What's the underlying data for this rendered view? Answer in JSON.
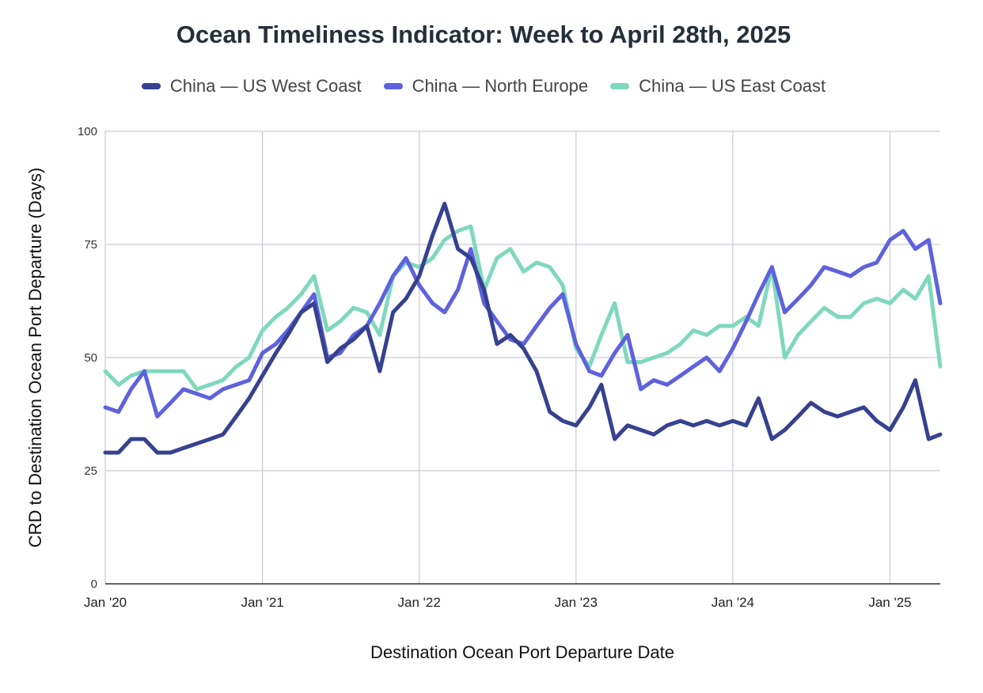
{
  "chart_data": {
    "type": "line",
    "title": "Ocean Timeliness Indicator: Week to April 28th, 2025",
    "xlabel": "Destination Ocean Port Departure Date",
    "ylabel": "CRD to Destination Ocean Port Departure (Days)",
    "ylim": [
      0,
      100
    ],
    "yticks": [
      0,
      25,
      50,
      75,
      100
    ],
    "xlim": [
      "2020-01-01",
      "2025-04-28"
    ],
    "xticks": [
      {
        "date": "2020-01-01",
        "label": "Jan '20"
      },
      {
        "date": "2021-01-01",
        "label": "Jan '21"
      },
      {
        "date": "2022-01-01",
        "label": "Jan '22"
      },
      {
        "date": "2023-01-01",
        "label": "Jan '23"
      },
      {
        "date": "2024-01-01",
        "label": "Jan '24"
      },
      {
        "date": "2025-01-01",
        "label": "Jan '25"
      }
    ],
    "grid": true,
    "legend_position": "top",
    "series": [
      {
        "name": "China — US West Coast",
        "color": "#36418f",
        "points": [
          [
            "2020-01-01",
            29
          ],
          [
            "2020-02-01",
            29
          ],
          [
            "2020-03-01",
            32
          ],
          [
            "2020-04-01",
            32
          ],
          [
            "2020-05-01",
            29
          ],
          [
            "2020-06-01",
            29
          ],
          [
            "2020-07-01",
            30
          ],
          [
            "2020-08-01",
            31
          ],
          [
            "2020-09-01",
            32
          ],
          [
            "2020-10-01",
            33
          ],
          [
            "2020-11-01",
            37
          ],
          [
            "2020-12-01",
            41
          ],
          [
            "2021-01-01",
            46
          ],
          [
            "2021-02-01",
            51
          ],
          [
            "2021-03-01",
            55
          ],
          [
            "2021-04-01",
            60
          ],
          [
            "2021-05-01",
            62
          ],
          [
            "2021-06-01",
            49
          ],
          [
            "2021-07-01",
            52
          ],
          [
            "2021-08-01",
            54
          ],
          [
            "2021-09-01",
            57
          ],
          [
            "2021-10-01",
            47
          ],
          [
            "2021-11-01",
            60
          ],
          [
            "2021-12-01",
            63
          ],
          [
            "2022-01-01",
            68
          ],
          [
            "2022-02-01",
            77
          ],
          [
            "2022-03-01",
            84
          ],
          [
            "2022-04-01",
            74
          ],
          [
            "2022-05-01",
            72
          ],
          [
            "2022-06-01",
            65
          ],
          [
            "2022-07-01",
            53
          ],
          [
            "2022-08-01",
            55
          ],
          [
            "2022-09-01",
            52
          ],
          [
            "2022-10-01",
            47
          ],
          [
            "2022-11-01",
            38
          ],
          [
            "2022-12-01",
            36
          ],
          [
            "2023-01-01",
            35
          ],
          [
            "2023-02-01",
            39
          ],
          [
            "2023-03-01",
            44
          ],
          [
            "2023-04-01",
            32
          ],
          [
            "2023-05-01",
            35
          ],
          [
            "2023-06-01",
            34
          ],
          [
            "2023-07-01",
            33
          ],
          [
            "2023-08-01",
            35
          ],
          [
            "2023-09-01",
            36
          ],
          [
            "2023-10-01",
            35
          ],
          [
            "2023-11-01",
            36
          ],
          [
            "2023-12-01",
            35
          ],
          [
            "2024-01-01",
            36
          ],
          [
            "2024-02-01",
            35
          ],
          [
            "2024-03-01",
            41
          ],
          [
            "2024-04-01",
            32
          ],
          [
            "2024-05-01",
            34
          ],
          [
            "2024-06-01",
            37
          ],
          [
            "2024-07-01",
            40
          ],
          [
            "2024-08-01",
            38
          ],
          [
            "2024-09-01",
            37
          ],
          [
            "2024-10-01",
            38
          ],
          [
            "2024-11-01",
            39
          ],
          [
            "2024-12-01",
            36
          ],
          [
            "2025-01-01",
            34
          ],
          [
            "2025-02-01",
            39
          ],
          [
            "2025-03-01",
            45
          ],
          [
            "2025-04-01",
            32
          ],
          [
            "2025-04-28",
            33
          ]
        ]
      },
      {
        "name": "China — North Europe",
        "color": "#5e62dc",
        "points": [
          [
            "2020-01-01",
            39
          ],
          [
            "2020-02-01",
            38
          ],
          [
            "2020-03-01",
            43
          ],
          [
            "2020-04-01",
            47
          ],
          [
            "2020-05-01",
            37
          ],
          [
            "2020-06-01",
            40
          ],
          [
            "2020-07-01",
            43
          ],
          [
            "2020-08-01",
            42
          ],
          [
            "2020-09-01",
            41
          ],
          [
            "2020-10-01",
            43
          ],
          [
            "2020-11-01",
            44
          ],
          [
            "2020-12-01",
            45
          ],
          [
            "2021-01-01",
            51
          ],
          [
            "2021-02-01",
            53
          ],
          [
            "2021-03-01",
            56
          ],
          [
            "2021-04-01",
            60
          ],
          [
            "2021-05-01",
            64
          ],
          [
            "2021-06-01",
            50
          ],
          [
            "2021-07-01",
            51
          ],
          [
            "2021-08-01",
            55
          ],
          [
            "2021-09-01",
            57
          ],
          [
            "2021-10-01",
            62
          ],
          [
            "2021-11-01",
            68
          ],
          [
            "2021-12-01",
            72
          ],
          [
            "2022-01-01",
            66
          ],
          [
            "2022-02-01",
            62
          ],
          [
            "2022-03-01",
            60
          ],
          [
            "2022-04-01",
            65
          ],
          [
            "2022-05-01",
            74
          ],
          [
            "2022-06-01",
            62
          ],
          [
            "2022-07-01",
            58
          ],
          [
            "2022-08-01",
            54
          ],
          [
            "2022-09-01",
            53
          ],
          [
            "2022-10-01",
            57
          ],
          [
            "2022-11-01",
            61
          ],
          [
            "2022-12-01",
            64
          ],
          [
            "2023-01-01",
            53
          ],
          [
            "2023-02-01",
            47
          ],
          [
            "2023-03-01",
            46
          ],
          [
            "2023-04-01",
            51
          ],
          [
            "2023-05-01",
            55
          ],
          [
            "2023-06-01",
            43
          ],
          [
            "2023-07-01",
            45
          ],
          [
            "2023-08-01",
            44
          ],
          [
            "2023-09-01",
            46
          ],
          [
            "2023-10-01",
            48
          ],
          [
            "2023-11-01",
            50
          ],
          [
            "2023-12-01",
            47
          ],
          [
            "2024-01-01",
            52
          ],
          [
            "2024-02-01",
            58
          ],
          [
            "2024-03-01",
            64
          ],
          [
            "2024-04-01",
            70
          ],
          [
            "2024-05-01",
            60
          ],
          [
            "2024-06-01",
            63
          ],
          [
            "2024-07-01",
            66
          ],
          [
            "2024-08-01",
            70
          ],
          [
            "2024-09-01",
            69
          ],
          [
            "2024-10-01",
            68
          ],
          [
            "2024-11-01",
            70
          ],
          [
            "2024-12-01",
            71
          ],
          [
            "2025-01-01",
            76
          ],
          [
            "2025-02-01",
            78
          ],
          [
            "2025-03-01",
            74
          ],
          [
            "2025-04-01",
            76
          ],
          [
            "2025-04-28",
            62
          ]
        ]
      },
      {
        "name": "China — US East Coast",
        "color": "#7fd8be",
        "points": [
          [
            "2020-01-01",
            47
          ],
          [
            "2020-02-01",
            44
          ],
          [
            "2020-03-01",
            46
          ],
          [
            "2020-04-01",
            47
          ],
          [
            "2020-05-01",
            47
          ],
          [
            "2020-06-01",
            47
          ],
          [
            "2020-07-01",
            47
          ],
          [
            "2020-08-01",
            43
          ],
          [
            "2020-09-01",
            44
          ],
          [
            "2020-10-01",
            45
          ],
          [
            "2020-11-01",
            48
          ],
          [
            "2020-12-01",
            50
          ],
          [
            "2021-01-01",
            56
          ],
          [
            "2021-02-01",
            59
          ],
          [
            "2021-03-01",
            61
          ],
          [
            "2021-04-01",
            64
          ],
          [
            "2021-05-01",
            68
          ],
          [
            "2021-06-01",
            56
          ],
          [
            "2021-07-01",
            58
          ],
          [
            "2021-08-01",
            61
          ],
          [
            "2021-09-01",
            60
          ],
          [
            "2021-10-01",
            55
          ],
          [
            "2021-11-01",
            68
          ],
          [
            "2021-12-01",
            71
          ],
          [
            "2022-01-01",
            70
          ],
          [
            "2022-02-01",
            72
          ],
          [
            "2022-03-01",
            76
          ],
          [
            "2022-04-01",
            78
          ],
          [
            "2022-05-01",
            79
          ],
          [
            "2022-06-01",
            65
          ],
          [
            "2022-07-01",
            72
          ],
          [
            "2022-08-01",
            74
          ],
          [
            "2022-09-01",
            69
          ],
          [
            "2022-10-01",
            71
          ],
          [
            "2022-11-01",
            70
          ],
          [
            "2022-12-01",
            66
          ],
          [
            "2023-01-01",
            52
          ],
          [
            "2023-02-01",
            48
          ],
          [
            "2023-03-01",
            55
          ],
          [
            "2023-04-01",
            62
          ],
          [
            "2023-05-01",
            49
          ],
          [
            "2023-06-01",
            49
          ],
          [
            "2023-07-01",
            50
          ],
          [
            "2023-08-01",
            51
          ],
          [
            "2023-09-01",
            53
          ],
          [
            "2023-10-01",
            56
          ],
          [
            "2023-11-01",
            55
          ],
          [
            "2023-12-01",
            57
          ],
          [
            "2024-01-01",
            57
          ],
          [
            "2024-02-01",
            59
          ],
          [
            "2024-03-01",
            57
          ],
          [
            "2024-04-01",
            70
          ],
          [
            "2024-05-01",
            50
          ],
          [
            "2024-06-01",
            55
          ],
          [
            "2024-07-01",
            58
          ],
          [
            "2024-08-01",
            61
          ],
          [
            "2024-09-01",
            59
          ],
          [
            "2024-10-01",
            59
          ],
          [
            "2024-11-01",
            62
          ],
          [
            "2024-12-01",
            63
          ],
          [
            "2025-01-01",
            62
          ],
          [
            "2025-02-01",
            65
          ],
          [
            "2025-03-01",
            63
          ],
          [
            "2025-04-01",
            68
          ],
          [
            "2025-04-28",
            48
          ]
        ]
      }
    ]
  }
}
